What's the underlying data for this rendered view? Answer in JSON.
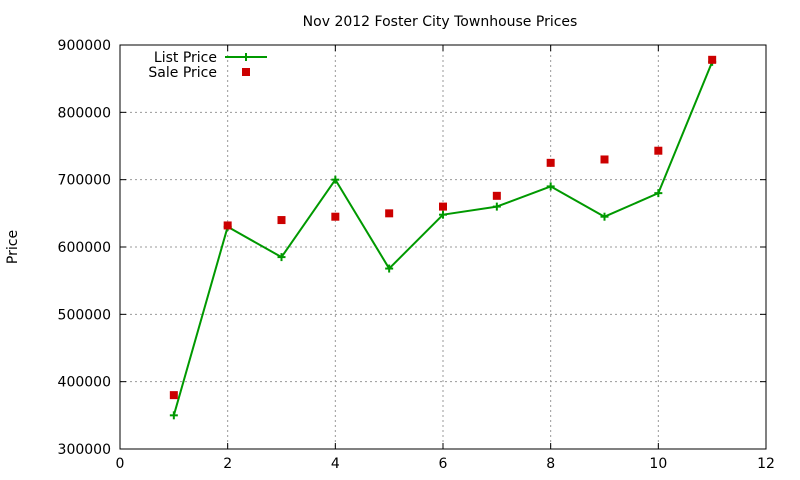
{
  "chart_data": {
    "type": "line",
    "title": "Nov 2012 Foster City Townhouse Prices",
    "xlabel": "",
    "ylabel": "Price",
    "xlim": [
      0,
      12
    ],
    "ylim": [
      300000,
      900000
    ],
    "xticks": [
      0,
      2,
      4,
      6,
      8,
      10,
      12
    ],
    "yticks": [
      300000,
      400000,
      500000,
      600000,
      700000,
      800000,
      900000
    ],
    "xtick_labels": [
      "0",
      "2",
      "4",
      "6",
      "8",
      "10",
      "12"
    ],
    "ytick_labels": [
      "300000",
      "400000",
      "500000",
      "600000",
      "700000",
      "800000",
      "900000"
    ],
    "grid": true,
    "legend_position": "top-left",
    "series": [
      {
        "name": "List Price",
        "style": "line+plus",
        "color": "#009900",
        "points": [
          {
            "x": 1,
            "y": 350000
          },
          {
            "x": 2,
            "y": 630000
          },
          {
            "x": 3,
            "y": 585000
          },
          {
            "x": 4,
            "y": 700000
          },
          {
            "x": 5,
            "y": 568000
          },
          {
            "x": 6,
            "y": 648000
          },
          {
            "x": 7,
            "y": 660000
          },
          {
            "x": 8,
            "y": 690000
          },
          {
            "x": 9,
            "y": 645000
          },
          {
            "x": 10,
            "y": 680000
          },
          {
            "x": 11,
            "y": 875000
          }
        ]
      },
      {
        "name": "Sale Price",
        "style": "square-points",
        "color": "#cc0000",
        "points": [
          {
            "x": 1,
            "y": 380000
          },
          {
            "x": 2,
            "y": 632000
          },
          {
            "x": 3,
            "y": 640000
          },
          {
            "x": 4,
            "y": 645000
          },
          {
            "x": 5,
            "y": 650000
          },
          {
            "x": 6,
            "y": 660000
          },
          {
            "x": 7,
            "y": 676000
          },
          {
            "x": 8,
            "y": 725000
          },
          {
            "x": 9,
            "y": 730000
          },
          {
            "x": 10,
            "y": 743000
          },
          {
            "x": 11,
            "y": 878000
          }
        ]
      }
    ]
  }
}
